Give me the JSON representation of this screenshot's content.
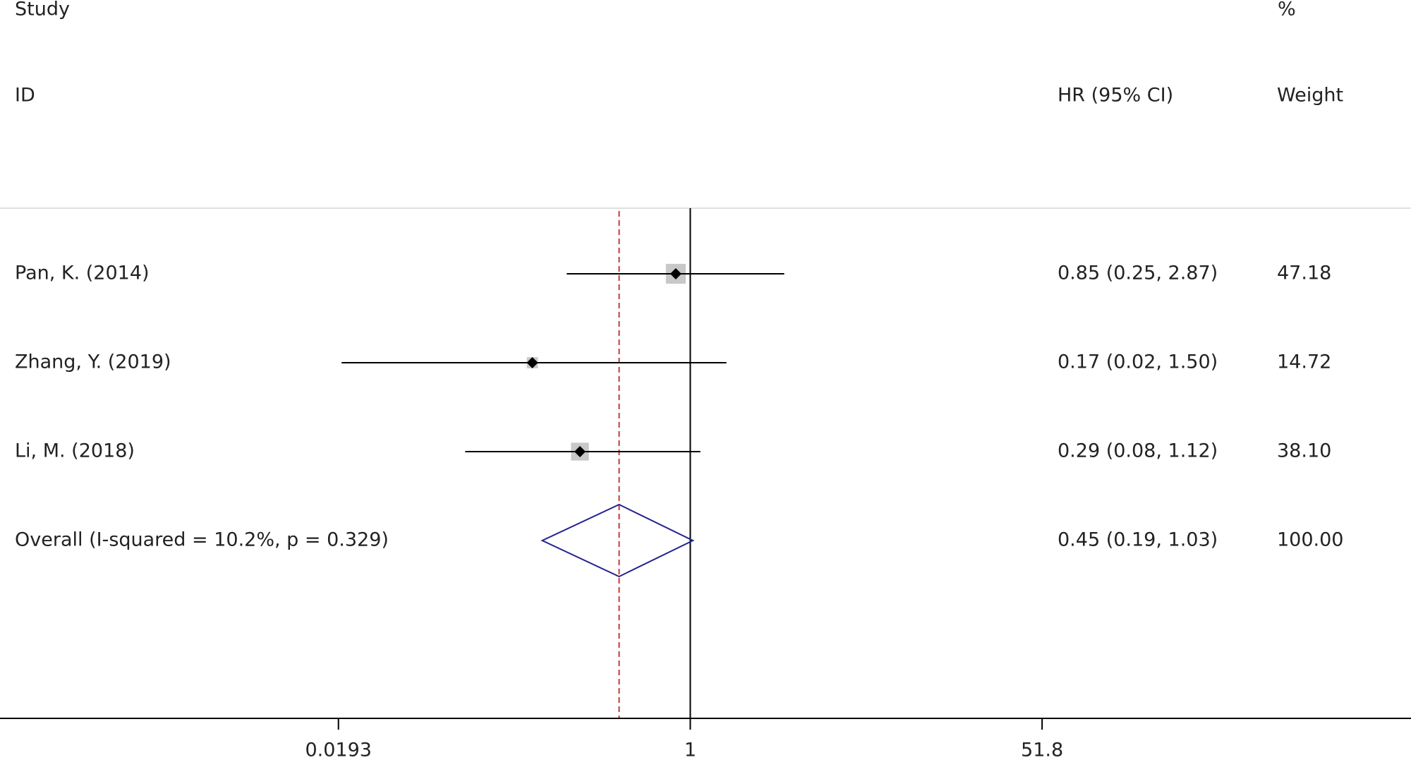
{
  "chart_data": {
    "type": "forest",
    "columns": {
      "study_top": "Study",
      "study": "ID",
      "effect": "HR (95% CI)",
      "weight_top": "%",
      "weight": "Weight"
    },
    "studies": [
      {
        "label": "Pan, K.  (2014)",
        "hr": 0.85,
        "ci": [
          0.25,
          2.87
        ],
        "ci_label": "0.85 (0.25, 2.87)",
        "weight": 47.18
      },
      {
        "label": "Zhang, Y.  (2019)",
        "hr": 0.17,
        "ci": [
          0.02,
          1.5
        ],
        "ci_label": "0.17 (0.02, 1.50)",
        "weight": 14.72
      },
      {
        "label": "Li, M.  (2018)",
        "hr": 0.29,
        "ci": [
          0.08,
          1.12
        ],
        "ci_label": "0.29 (0.08, 1.12)",
        "weight": 38.1,
        "weight_label": "38.10"
      }
    ],
    "overall": {
      "label": "Overall  (I-squared = 10.2%, p = 0.329)",
      "hr": 0.45,
      "ci": [
        0.19,
        1.03
      ],
      "ci_label": "0.45 (0.19, 1.03)",
      "weight": 100,
      "weight_label": "100.00"
    },
    "log_x": true,
    "xlim": [
      0.000433,
      3250
    ],
    "xticks": [
      0.0193,
      1,
      51.8
    ],
    "null_line": 1,
    "box_color": "#c8c8c8",
    "point_color": "#000000",
    "diamond_color": "#23238e",
    "overall_line_color": "#c0393b"
  }
}
